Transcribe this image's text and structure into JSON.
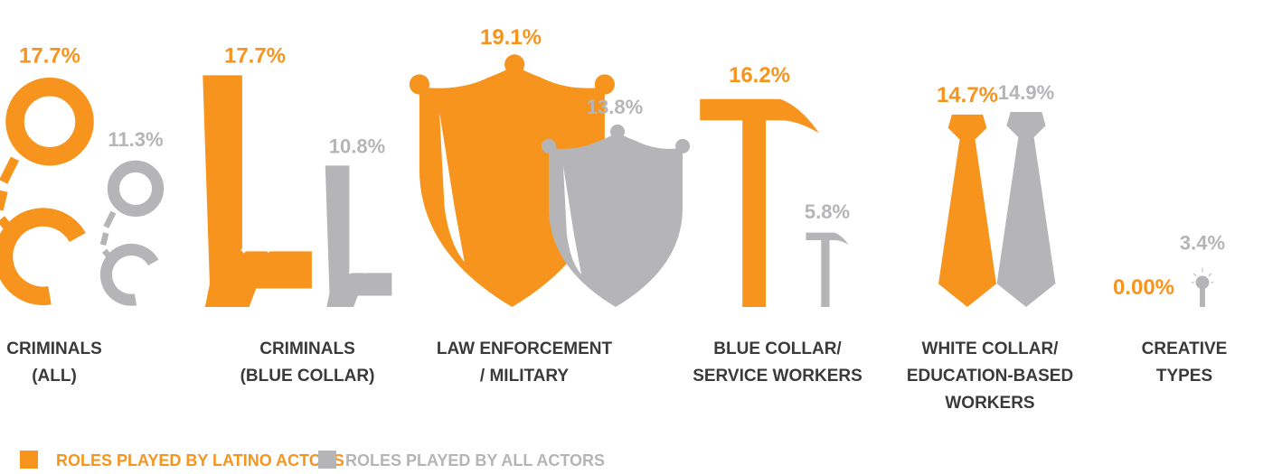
{
  "chart_data": {
    "type": "pictograph",
    "categories": [
      [
        "CRIMINALS",
        "(ALL)"
      ],
      [
        "CRIMINALS",
        "(BLUE COLLAR)"
      ],
      [
        "LAW ENFORCEMENT",
        "/ MILITARY"
      ],
      [
        "BLUE COLLAR/",
        "SERVICE WORKERS"
      ],
      [
        "WHITE COLLAR/",
        "EDUCATION-BASED",
        "WORKERS"
      ],
      [
        "CREATIVE",
        "TYPES"
      ]
    ],
    "series": [
      {
        "name": "ROLES PLAYED BY LATINO ACTORS",
        "color": "#f7941d",
        "values": [
          17.7,
          17.7,
          19.1,
          16.2,
          14.7,
          0
        ],
        "value_labels": [
          "17.7%",
          "17.7%",
          "19.1%",
          "16.2%",
          "14.7%",
          "0.00%"
        ]
      },
      {
        "name": "ROLES PLAYED BY ALL ACTORS",
        "color": "#b5b5b8",
        "values": [
          11.3,
          10.8,
          13.8,
          5.8,
          14.9,
          3.4
        ],
        "value_labels": [
          "11.3%",
          "10.8%",
          "13.8%",
          "5.8%",
          "14.9%",
          "3.4%"
        ]
      }
    ]
  }
}
